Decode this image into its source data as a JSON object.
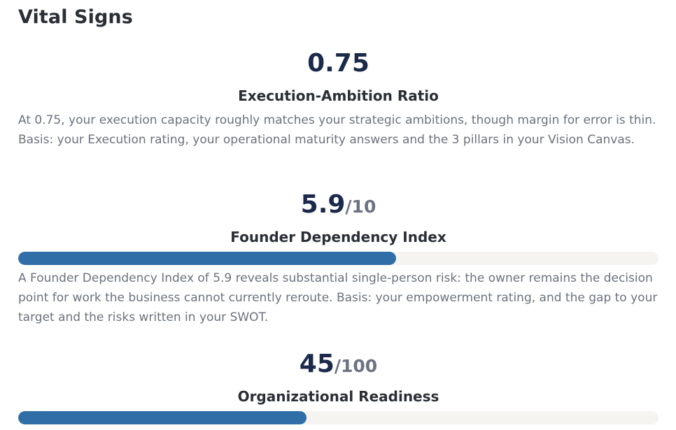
{
  "page": {
    "title": "Vital Signs"
  },
  "metrics": [
    {
      "value": "0.75",
      "suffix": "",
      "label": "Execution-Ambition Ratio",
      "description": "At 0.75, your execution capacity roughly matches your strategic ambitions, though margin for error is thin. Basis: your Execution rating, your operational maturity answers and the 3 pillars in your Vision Canvas."
    },
    {
      "value": "5.9",
      "suffix": "/10",
      "label": "Founder Dependency Index",
      "progress_fraction": 0.59,
      "description": "A Founder Dependency Index of 5.9 reveals substantial single-person risk: the owner remains the decision point for work the business cannot currently reroute. Basis: your empowerment rating, and the gap to your target and the risks written in your SWOT."
    },
    {
      "value": "45",
      "suffix": "/100",
      "label": "Organizational Readiness",
      "progress_fraction": 0.45
    }
  ],
  "colors": {
    "title": "#2a2f36",
    "value": "#1b2a4a",
    "suffix": "#6b7382",
    "description": "#6b727c",
    "bar_fill": "#2f6ea6",
    "bar_track": "#f5f4f1"
  }
}
